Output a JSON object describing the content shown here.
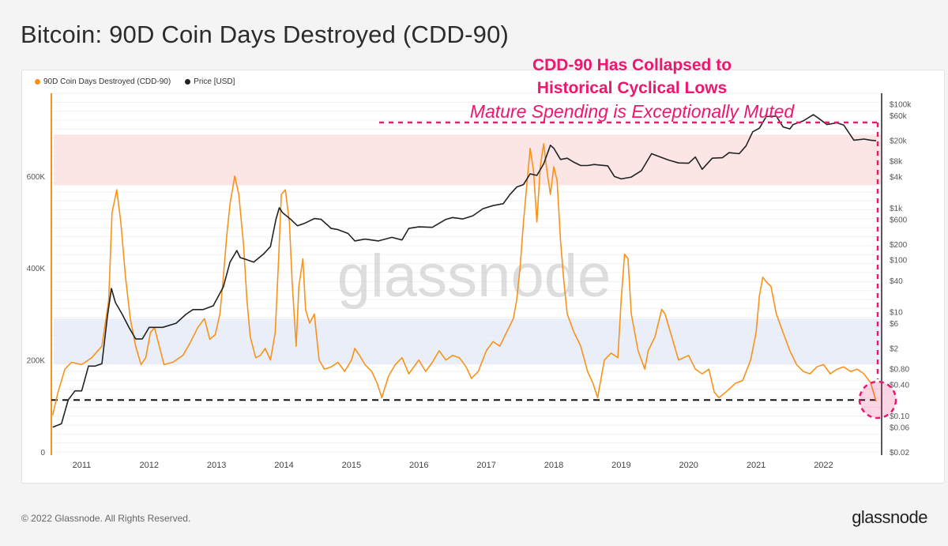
{
  "page": {
    "title": "Bitcoin: 90D Coin Days Destroyed (CDD-90)",
    "copyright": "© 2022 Glassnode. All Rights Reserved.",
    "logo": "glassnode",
    "watermark": "glassnode"
  },
  "annotations": {
    "line1": "CDD-90 Has Collapsed to",
    "line2": "Historical Cyclical Lows",
    "line3": "Mature Spending is Exceptionally Muted"
  },
  "colors": {
    "cdd": "#f7931a",
    "price": "#222222",
    "accent": "#f0156f",
    "red_band": "#fbe1e1",
    "blue_band": "#e6ebf7"
  },
  "chart_data": {
    "type": "line",
    "legend": [
      "90D Coin Days Destroyed (CDD-90)",
      "Price [USD]"
    ],
    "legend_position": "top-left",
    "grid": true,
    "x_ticks": [
      "2011",
      "2012",
      "2013",
      "2014",
      "2015",
      "2016",
      "2017",
      "2018",
      "2019",
      "2020",
      "2021",
      "2022"
    ],
    "xlim": [
      2010.55,
      2022.85
    ],
    "y_left": {
      "ticks": [
        {
          "v": 0,
          "label": "0"
        },
        {
          "v": 200000,
          "label": "200K"
        },
        {
          "v": 400000,
          "label": "400K"
        },
        {
          "v": 600000,
          "label": "600K"
        }
      ],
      "ylim": [
        0,
        780000
      ]
    },
    "y_right": {
      "scale": "log",
      "ticks": [
        {
          "v": 100000,
          "label": "$100k"
        },
        {
          "v": 60000,
          "label": "$60k"
        },
        {
          "v": 20000,
          "label": "$20k"
        },
        {
          "v": 8000,
          "label": "$8k"
        },
        {
          "v": 4000,
          "label": "$4k"
        },
        {
          "v": 1000,
          "label": "$1k"
        },
        {
          "v": 600,
          "label": "$600"
        },
        {
          "v": 200,
          "label": "$200"
        },
        {
          "v": 100,
          "label": "$100"
        },
        {
          "v": 40,
          "label": "$40"
        },
        {
          "v": 10,
          "label": "$10"
        },
        {
          "v": 6,
          "label": "$6"
        },
        {
          "v": 2,
          "label": "$2"
        },
        {
          "v": 0.8,
          "label": "$0.80"
        },
        {
          "v": 0.4,
          "label": "$0.40"
        },
        {
          "v": 0.1,
          "label": "$0.10"
        },
        {
          "v": 0.06,
          "label": "$0.06"
        },
        {
          "v": 0.02,
          "label": "$0.02"
        }
      ],
      "ylim": [
        0.02,
        160000
      ]
    },
    "bands": [
      {
        "name": "high",
        "y0": 580000,
        "y1": 690000
      },
      {
        "name": "low",
        "y0": 190000,
        "y1": 290000
      }
    ],
    "reference_line": 113000,
    "series": [
      {
        "name": "90D Coin Days Destroyed (CDD-90)",
        "axis": "left",
        "points": [
          [
            2010.57,
            80000
          ],
          [
            2010.65,
            130000
          ],
          [
            2010.75,
            180000
          ],
          [
            2010.85,
            195000
          ],
          [
            2011.0,
            190000
          ],
          [
            2011.15,
            205000
          ],
          [
            2011.3,
            230000
          ],
          [
            2011.4,
            330000
          ],
          [
            2011.45,
            520000
          ],
          [
            2011.52,
            570000
          ],
          [
            2011.58,
            500000
          ],
          [
            2011.65,
            380000
          ],
          [
            2011.72,
            290000
          ],
          [
            2011.8,
            230000
          ],
          [
            2011.88,
            190000
          ],
          [
            2011.95,
            205000
          ],
          [
            2012.02,
            260000
          ],
          [
            2012.08,
            270000
          ],
          [
            2012.15,
            230000
          ],
          [
            2012.22,
            190000
          ],
          [
            2012.35,
            195000
          ],
          [
            2012.5,
            210000
          ],
          [
            2012.6,
            235000
          ],
          [
            2012.72,
            270000
          ],
          [
            2012.82,
            290000
          ],
          [
            2012.9,
            245000
          ],
          [
            2012.98,
            255000
          ],
          [
            2013.05,
            300000
          ],
          [
            2013.1,
            380000
          ],
          [
            2013.15,
            470000
          ],
          [
            2013.2,
            540000
          ],
          [
            2013.27,
            600000
          ],
          [
            2013.33,
            560000
          ],
          [
            2013.4,
            450000
          ],
          [
            2013.45,
            330000
          ],
          [
            2013.5,
            250000
          ],
          [
            2013.58,
            205000
          ],
          [
            2013.65,
            210000
          ],
          [
            2013.72,
            225000
          ],
          [
            2013.8,
            200000
          ],
          [
            2013.87,
            260000
          ],
          [
            2013.92,
            420000
          ],
          [
            2013.96,
            560000
          ],
          [
            2014.02,
            570000
          ],
          [
            2014.08,
            500000
          ],
          [
            2014.12,
            370000
          ],
          [
            2014.18,
            230000
          ],
          [
            2014.22,
            360000
          ],
          [
            2014.28,
            420000
          ],
          [
            2014.32,
            310000
          ],
          [
            2014.38,
            280000
          ],
          [
            2014.45,
            300000
          ],
          [
            2014.52,
            200000
          ],
          [
            2014.6,
            180000
          ],
          [
            2014.7,
            185000
          ],
          [
            2014.8,
            195000
          ],
          [
            2014.9,
            175000
          ],
          [
            2015.0,
            200000
          ],
          [
            2015.05,
            225000
          ],
          [
            2015.12,
            210000
          ],
          [
            2015.2,
            190000
          ],
          [
            2015.3,
            175000
          ],
          [
            2015.38,
            150000
          ],
          [
            2015.45,
            118000
          ],
          [
            2015.55,
            165000
          ],
          [
            2015.65,
            190000
          ],
          [
            2015.75,
            205000
          ],
          [
            2015.85,
            170000
          ],
          [
            2016.0,
            200000
          ],
          [
            2016.1,
            175000
          ],
          [
            2016.2,
            195000
          ],
          [
            2016.3,
            220000
          ],
          [
            2016.4,
            200000
          ],
          [
            2016.5,
            210000
          ],
          [
            2016.6,
            205000
          ],
          [
            2016.7,
            185000
          ],
          [
            2016.78,
            160000
          ],
          [
            2016.88,
            175000
          ],
          [
            2017.0,
            220000
          ],
          [
            2017.1,
            240000
          ],
          [
            2017.2,
            230000
          ],
          [
            2017.3,
            260000
          ],
          [
            2017.4,
            290000
          ],
          [
            2017.45,
            330000
          ],
          [
            2017.5,
            400000
          ],
          [
            2017.55,
            500000
          ],
          [
            2017.6,
            580000
          ],
          [
            2017.65,
            660000
          ],
          [
            2017.7,
            610000
          ],
          [
            2017.75,
            500000
          ],
          [
            2017.8,
            620000
          ],
          [
            2017.85,
            670000
          ],
          [
            2017.9,
            610000
          ],
          [
            2017.95,
            560000
          ],
          [
            2018.0,
            620000
          ],
          [
            2018.05,
            590000
          ],
          [
            2018.1,
            460000
          ],
          [
            2018.15,
            370000
          ],
          [
            2018.2,
            300000
          ],
          [
            2018.3,
            260000
          ],
          [
            2018.4,
            230000
          ],
          [
            2018.5,
            175000
          ],
          [
            2018.58,
            150000
          ],
          [
            2018.65,
            118000
          ],
          [
            2018.75,
            200000
          ],
          [
            2018.85,
            215000
          ],
          [
            2018.95,
            205000
          ],
          [
            2019.0,
            330000
          ],
          [
            2019.05,
            430000
          ],
          [
            2019.1,
            420000
          ],
          [
            2019.15,
            300000
          ],
          [
            2019.25,
            220000
          ],
          [
            2019.35,
            180000
          ],
          [
            2019.4,
            220000
          ],
          [
            2019.5,
            250000
          ],
          [
            2019.6,
            310000
          ],
          [
            2019.65,
            300000
          ],
          [
            2019.75,
            250000
          ],
          [
            2019.85,
            200000
          ],
          [
            2020.0,
            210000
          ],
          [
            2020.1,
            180000
          ],
          [
            2020.2,
            170000
          ],
          [
            2020.3,
            180000
          ],
          [
            2020.38,
            130000
          ],
          [
            2020.45,
            118000
          ],
          [
            2020.55,
            130000
          ],
          [
            2020.7,
            150000
          ],
          [
            2020.8,
            155000
          ],
          [
            2020.92,
            200000
          ],
          [
            2021.0,
            260000
          ],
          [
            2021.05,
            340000
          ],
          [
            2021.1,
            380000
          ],
          [
            2021.15,
            370000
          ],
          [
            2021.22,
            360000
          ],
          [
            2021.3,
            300000
          ],
          [
            2021.4,
            260000
          ],
          [
            2021.5,
            220000
          ],
          [
            2021.6,
            190000
          ],
          [
            2021.7,
            175000
          ],
          [
            2021.8,
            170000
          ],
          [
            2021.9,
            185000
          ],
          [
            2022.0,
            190000
          ],
          [
            2022.1,
            170000
          ],
          [
            2022.2,
            180000
          ],
          [
            2022.3,
            185000
          ],
          [
            2022.4,
            175000
          ],
          [
            2022.5,
            180000
          ],
          [
            2022.6,
            170000
          ],
          [
            2022.7,
            150000
          ],
          [
            2022.78,
            110000
          ]
        ]
      },
      {
        "name": "Price [USD]",
        "axis": "right",
        "points": [
          [
            2010.57,
            0.06
          ],
          [
            2010.7,
            0.07
          ],
          [
            2010.8,
            0.2
          ],
          [
            2010.9,
            0.3
          ],
          [
            2011.0,
            0.3
          ],
          [
            2011.1,
            0.9
          ],
          [
            2011.2,
            0.9
          ],
          [
            2011.3,
            1
          ],
          [
            2011.38,
            8
          ],
          [
            2011.44,
            28
          ],
          [
            2011.5,
            15
          ],
          [
            2011.6,
            9
          ],
          [
            2011.7,
            5
          ],
          [
            2011.8,
            3
          ],
          [
            2011.9,
            3
          ],
          [
            2012.0,
            5
          ],
          [
            2012.1,
            5
          ],
          [
            2012.2,
            5
          ],
          [
            2012.4,
            6
          ],
          [
            2012.55,
            9
          ],
          [
            2012.65,
            11
          ],
          [
            2012.8,
            11
          ],
          [
            2012.95,
            13
          ],
          [
            2013.1,
            30
          ],
          [
            2013.2,
            90
          ],
          [
            2013.3,
            150
          ],
          [
            2013.35,
            110
          ],
          [
            2013.45,
            100
          ],
          [
            2013.55,
            90
          ],
          [
            2013.7,
            130
          ],
          [
            2013.8,
            180
          ],
          [
            2013.88,
            600
          ],
          [
            2013.93,
            1000
          ],
          [
            2013.98,
            800
          ],
          [
            2014.1,
            600
          ],
          [
            2014.2,
            450
          ],
          [
            2014.3,
            500
          ],
          [
            2014.45,
            620
          ],
          [
            2014.55,
            600
          ],
          [
            2014.7,
            400
          ],
          [
            2014.8,
            380
          ],
          [
            2014.95,
            320
          ],
          [
            2015.05,
            230
          ],
          [
            2015.2,
            250
          ],
          [
            2015.4,
            230
          ],
          [
            2015.6,
            270
          ],
          [
            2015.75,
            240
          ],
          [
            2015.85,
            400
          ],
          [
            2016.0,
            430
          ],
          [
            2016.2,
            420
          ],
          [
            2016.4,
            600
          ],
          [
            2016.5,
            650
          ],
          [
            2016.65,
            610
          ],
          [
            2016.8,
            700
          ],
          [
            2016.95,
            960
          ],
          [
            2017.1,
            1100
          ],
          [
            2017.25,
            1200
          ],
          [
            2017.35,
            1800
          ],
          [
            2017.45,
            2500
          ],
          [
            2017.55,
            2800
          ],
          [
            2017.65,
            4500
          ],
          [
            2017.75,
            4200
          ],
          [
            2017.85,
            7000
          ],
          [
            2017.95,
            16000
          ],
          [
            2018.0,
            14000
          ],
          [
            2018.1,
            8500
          ],
          [
            2018.2,
            9000
          ],
          [
            2018.3,
            7500
          ],
          [
            2018.4,
            6500
          ],
          [
            2018.5,
            6500
          ],
          [
            2018.6,
            6800
          ],
          [
            2018.8,
            6400
          ],
          [
            2018.9,
            4000
          ],
          [
            2019.0,
            3600
          ],
          [
            2019.15,
            3900
          ],
          [
            2019.3,
            5200
          ],
          [
            2019.45,
            11000
          ],
          [
            2019.55,
            9800
          ],
          [
            2019.7,
            8300
          ],
          [
            2019.85,
            7300
          ],
          [
            2020.0,
            7200
          ],
          [
            2020.1,
            9500
          ],
          [
            2020.2,
            5500
          ],
          [
            2020.35,
            9000
          ],
          [
            2020.5,
            9200
          ],
          [
            2020.6,
            11500
          ],
          [
            2020.75,
            11000
          ],
          [
            2020.85,
            15500
          ],
          [
            2020.95,
            29000
          ],
          [
            2021.05,
            34000
          ],
          [
            2021.15,
            57000
          ],
          [
            2021.3,
            58000
          ],
          [
            2021.4,
            36000
          ],
          [
            2021.5,
            33000
          ],
          [
            2021.55,
            40000
          ],
          [
            2021.7,
            47000
          ],
          [
            2021.85,
            62000
          ],
          [
            2021.95,
            50000
          ],
          [
            2022.05,
            40000
          ],
          [
            2022.2,
            43000
          ],
          [
            2022.3,
            39000
          ],
          [
            2022.45,
            20000
          ],
          [
            2022.6,
            21000
          ],
          [
            2022.7,
            20000
          ],
          [
            2022.78,
            19500
          ]
        ]
      }
    ]
  }
}
